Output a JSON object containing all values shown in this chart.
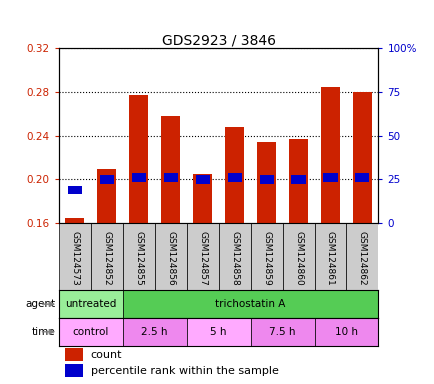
{
  "title": "GDS2923 / 3846",
  "samples": [
    "GSM124573",
    "GSM124852",
    "GSM124855",
    "GSM124856",
    "GSM124857",
    "GSM124858",
    "GSM124859",
    "GSM124860",
    "GSM124861",
    "GSM124862"
  ],
  "count_values": [
    0.165,
    0.21,
    0.277,
    0.258,
    0.205,
    0.248,
    0.234,
    0.237,
    0.285,
    0.28
  ],
  "percentile_values": [
    19,
    25,
    26,
    26,
    25,
    26,
    25,
    25,
    26,
    26
  ],
  "ylim_left": [
    0.16,
    0.32
  ],
  "ylim_right": [
    0,
    100
  ],
  "yticks_left": [
    0.16,
    0.2,
    0.24,
    0.28,
    0.32
  ],
  "yticks_right": [
    0,
    25,
    50,
    75,
    100
  ],
  "ytick_labels_right": [
    "0",
    "25",
    "50",
    "75",
    "100%"
  ],
  "bar_color": "#cc2200",
  "percentile_color": "#0000cc",
  "agent_groups": [
    {
      "label": "untreated",
      "color": "#99ee99",
      "span": [
        0,
        2
      ]
    },
    {
      "label": "trichostatin A",
      "color": "#55cc55",
      "span": [
        2,
        10
      ]
    }
  ],
  "time_groups": [
    {
      "label": "control",
      "color": "#ffaaff",
      "span": [
        0,
        2
      ]
    },
    {
      "label": "2.5 h",
      "color": "#ee88ee",
      "span": [
        2,
        4
      ]
    },
    {
      "label": "5 h",
      "color": "#ffaaff",
      "span": [
        4,
        6
      ]
    },
    {
      "label": "7.5 h",
      "color": "#ee88ee",
      "span": [
        6,
        8
      ]
    },
    {
      "label": "10 h",
      "color": "#ee88ee",
      "span": [
        8,
        10
      ]
    }
  ],
  "background_color": "#ffffff",
  "label_color_left": "#cc2200",
  "label_color_right": "#0000cc",
  "legend_count_label": "count",
  "legend_percentile_label": "percentile rank within the sample",
  "agent_label": "agent",
  "time_label": "time",
  "xtick_bg_color": "#cccccc"
}
